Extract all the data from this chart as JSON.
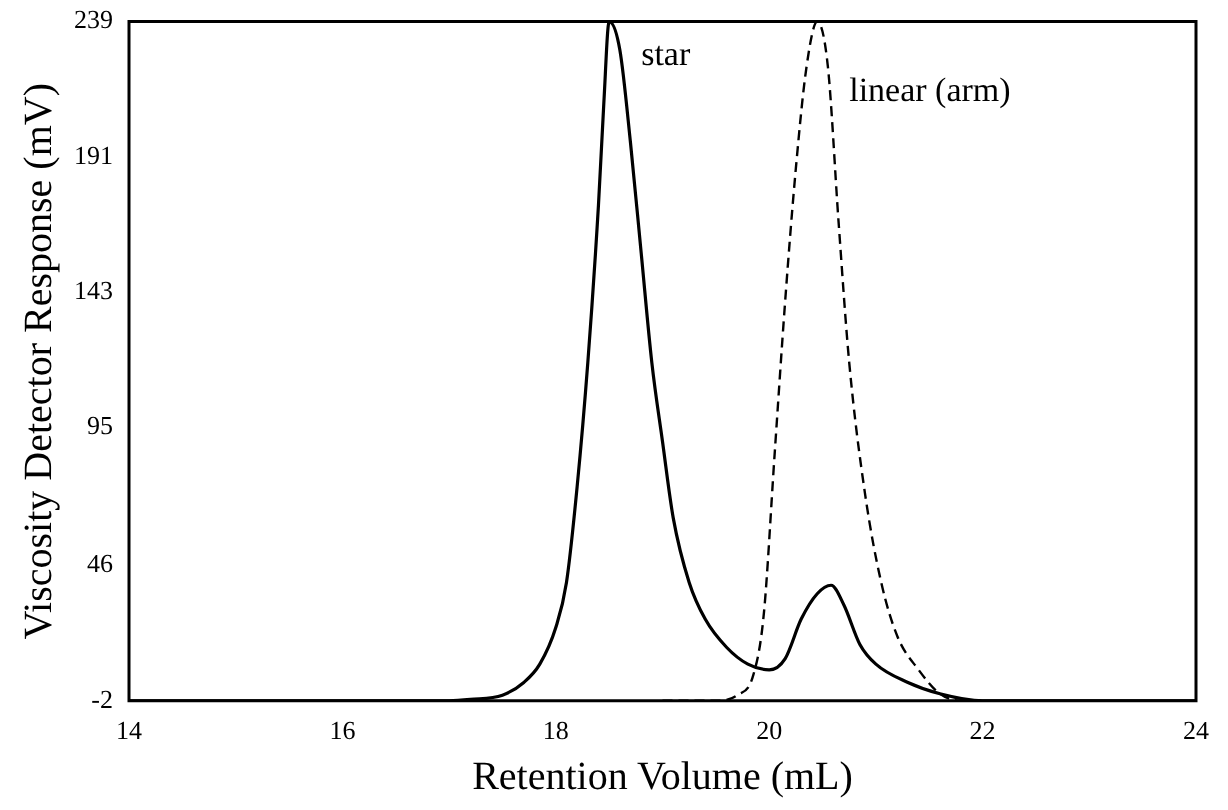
{
  "chart_data": {
    "type": "line",
    "xlabel": "Retention Volume (mL)",
    "ylabel": "Viscosity Detector Response (mV)",
    "xlim": [
      14,
      24
    ],
    "xticks": [
      14,
      16,
      18,
      20,
      22,
      24
    ],
    "ylim": [
      -2,
      239
    ],
    "yticks": [
      -2,
      46,
      95,
      143,
      191,
      239
    ],
    "grid": false,
    "legend": false,
    "marker": "none",
    "series": [
      {
        "name": "star",
        "color": "#000000",
        "line_style": "solid",
        "x": [
          14,
          16,
          17,
          17.2,
          17.5,
          17.7,
          17.85,
          18,
          18.1,
          18.2,
          18.3,
          18.4,
          18.45,
          18.5,
          18.6,
          18.7,
          18.8,
          18.9,
          19,
          19.1,
          19.25,
          19.4,
          19.6,
          19.8,
          20,
          20.15,
          20.3,
          20.45,
          20.58,
          20.7,
          20.85,
          21,
          21.3,
          21.6,
          22,
          24
        ],
        "values": [
          -2,
          -2,
          -2,
          -1.5,
          0,
          4.5,
          11,
          24,
          40,
          74,
          118,
          174,
          210,
          239,
          229,
          196,
          157,
          118,
          90,
          63,
          40,
          27,
          17,
          11,
          9,
          13,
          27,
          36,
          39,
          32,
          18,
          11,
          4.5,
          0.5,
          -2,
          -2
        ]
      },
      {
        "name": "linear (arm)",
        "color": "#000000",
        "line_style": "dashed",
        "x": [
          19,
          19.5,
          19.7,
          19.85,
          19.95,
          20.05,
          20.15,
          20.25,
          20.35,
          20.45,
          20.55,
          20.65,
          20.75,
          20.9,
          21.05,
          21.2,
          21.4,
          21.6,
          21.8,
          22
        ],
        "values": [
          -2,
          -2,
          0,
          7,
          29,
          85,
          140,
          187,
          223,
          239,
          223,
          168,
          118,
          71,
          40,
          21,
          9,
          0.5,
          -2,
          -2
        ]
      }
    ]
  }
}
